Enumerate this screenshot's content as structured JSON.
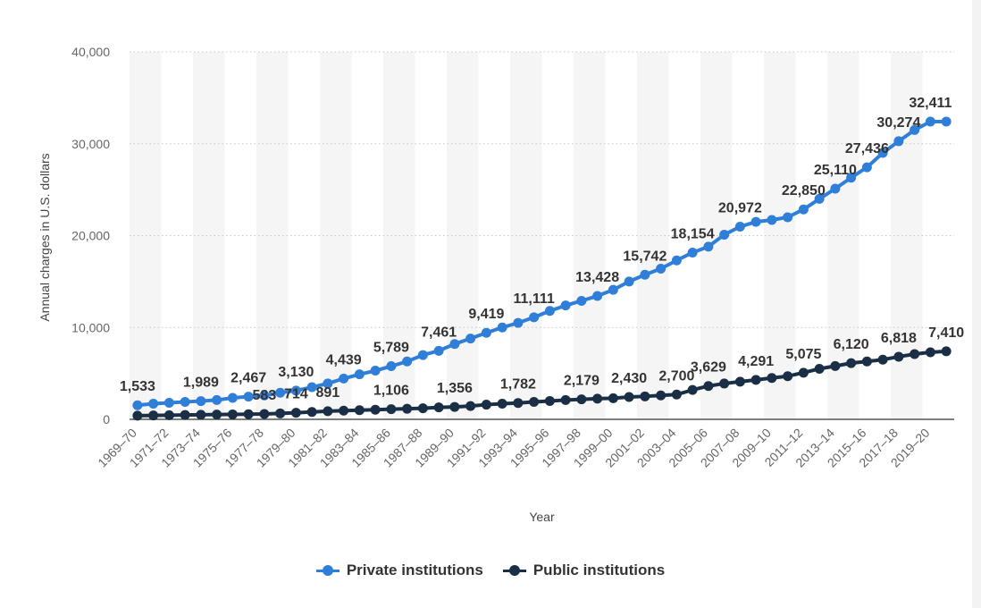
{
  "chart_data": {
    "type": "line",
    "xlabel": "Year",
    "ylabel": "Annual charges in U.S. dollars",
    "ylim": [
      0,
      40000
    ],
    "yticks": [
      "0",
      "10,000",
      "20,000",
      "30,000",
      "40,000"
    ],
    "ytick_values": [
      0,
      10000,
      20000,
      30000,
      40000
    ],
    "grid": "horizontal dotted",
    "legend_position": "bottom",
    "categories": [
      "1969–70",
      "1970–71",
      "1971–72",
      "1972–73",
      "1973–74",
      "1974–75",
      "1975–76",
      "1976–77",
      "1977–78",
      "1978–79",
      "1979–80",
      "1980–81",
      "1981–82",
      "1982–83",
      "1983–84",
      "1984–85",
      "1985–86",
      "1986–87",
      "1987–88",
      "1988–89",
      "1989–90",
      "1990–91",
      "1991–92",
      "1992–93",
      "1993–94",
      "1994–95",
      "1995–96",
      "1996–97",
      "1997–98",
      "1998–99",
      "1999–00",
      "2000–01",
      "2001–02",
      "2002–03",
      "2003–04",
      "2004–05",
      "2005–06",
      "2006–07",
      "2007–08",
      "2008–09",
      "2009–10",
      "2010–11",
      "2011–12",
      "2012–13",
      "2013–14",
      "2014–15",
      "2015–16",
      "2016–17",
      "2017–18",
      "2018–19",
      "2019–20",
      "2020–21"
    ],
    "x_tick_labels": [
      "1969–70",
      "1971–72",
      "1973–74",
      "1975–76",
      "1977–78",
      "1979–80",
      "1981–82",
      "1983–84",
      "1985–86",
      "1987–88",
      "1989–90",
      "1991–92",
      "1993–94",
      "1995–96",
      "1997–98",
      "1999–00",
      "2001–02",
      "2003–04",
      "2005–06",
      "2007–08",
      "2009–10",
      "2011–12",
      "2013–14",
      "2015–16",
      "2017–18",
      "2019–20"
    ],
    "series": [
      {
        "name": "Private institutions",
        "color": "#2f7ed8",
        "values": [
          1533,
          1700,
          1800,
          1900,
          1989,
          2100,
          2333,
          2467,
          2600,
          2900,
          3130,
          3500,
          3900,
          4439,
          4900,
          5300,
          5789,
          6300,
          7000,
          7461,
          8200,
          8800,
          9419,
          10000,
          10500,
          11111,
          11800,
          12400,
          12900,
          13428,
          14100,
          15000,
          15742,
          16400,
          17300,
          18154,
          18800,
          20100,
          20972,
          21500,
          21700,
          22000,
          22850,
          24000,
          25110,
          26300,
          27436,
          29000,
          30274,
          31500,
          32411,
          32411
        ],
        "labels": [
          [
            0,
            "1,533"
          ],
          [
            4,
            "1,989"
          ],
          [
            7,
            "2,467"
          ],
          [
            10,
            "3,130"
          ],
          [
            13,
            "4,439"
          ],
          [
            16,
            "5,789"
          ],
          [
            19,
            "7,461"
          ],
          [
            22,
            "9,419"
          ],
          [
            25,
            "11,111"
          ],
          [
            29,
            "13,428"
          ],
          [
            32,
            "15,742"
          ],
          [
            35,
            "18,154"
          ],
          [
            38,
            "20,972"
          ],
          [
            42,
            "22,850"
          ],
          [
            44,
            "25,110"
          ],
          [
            46,
            "27,436"
          ],
          [
            48,
            "30,274"
          ],
          [
            50,
            "32,411"
          ]
        ]
      },
      {
        "name": "Public institutions",
        "color": "#1a2f45",
        "values": [
          400,
          420,
          450,
          480,
          500,
          520,
          540,
          560,
          583,
          650,
          714,
          800,
          891,
          950,
          1000,
          1050,
          1106,
          1150,
          1200,
          1300,
          1356,
          1450,
          1600,
          1700,
          1782,
          1900,
          2000,
          2100,
          2179,
          2250,
          2300,
          2430,
          2500,
          2600,
          2700,
          3200,
          3629,
          3900,
          4100,
          4291,
          4500,
          4700,
          5075,
          5500,
          5800,
          6120,
          6300,
          6500,
          6818,
          7100,
          7300,
          7410
        ],
        "labels": [
          [
            8,
            "583"
          ],
          [
            10,
            "714"
          ],
          [
            12,
            "891"
          ],
          [
            16,
            "1,106"
          ],
          [
            20,
            "1,356"
          ],
          [
            24,
            "1,782"
          ],
          [
            28,
            "2,179"
          ],
          [
            31,
            "2,430"
          ],
          [
            34,
            "2,700"
          ],
          [
            36,
            "3,629"
          ],
          [
            39,
            "4,291"
          ],
          [
            42,
            "5,075"
          ],
          [
            45,
            "6,120"
          ],
          [
            48,
            "6,818"
          ],
          [
            51,
            "7,410"
          ]
        ]
      }
    ]
  }
}
